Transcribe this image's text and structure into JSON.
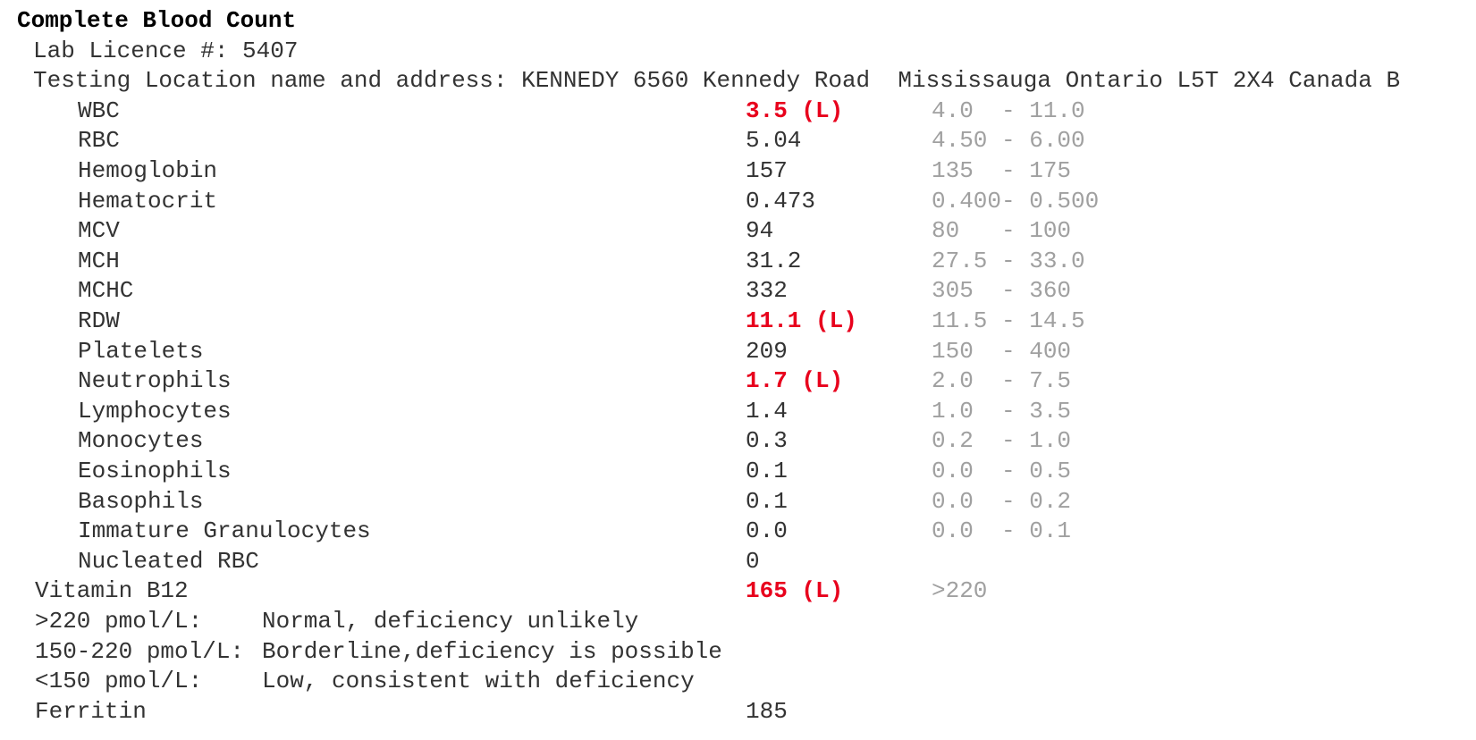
{
  "header": {
    "title": "Complete Blood Count",
    "licence": "Lab Licence #: 5407",
    "location": "Testing Location name and address: KENNEDY 6560 Kennedy Road  Mississauga Ontario L5T 2X4 Canada B"
  },
  "cbc": [
    {
      "name": "WBC",
      "value": "3.5",
      "flag": "(L)",
      "range": "4.0  - 11.0"
    },
    {
      "name": "RBC",
      "value": "5.04",
      "range": "4.50 - 6.00"
    },
    {
      "name": "Hemoglobin",
      "value": "157",
      "range": "135  - 175"
    },
    {
      "name": "Hematocrit",
      "value": "0.473",
      "range": "0.400- 0.500"
    },
    {
      "name": "MCV",
      "value": "94",
      "range": "80   - 100"
    },
    {
      "name": "MCH",
      "value": "31.2",
      "range": "27.5 - 33.0"
    },
    {
      "name": "MCHC",
      "value": "332",
      "range": "305  - 360"
    },
    {
      "name": "RDW",
      "value": "11.1",
      "flag": "(L)",
      "range": "11.5 - 14.5"
    },
    {
      "name": "Platelets",
      "value": "209",
      "range": "150  - 400"
    },
    {
      "name": "Neutrophils",
      "value": "1.7",
      "flag": "(L)",
      "range": "2.0  - 7.5"
    },
    {
      "name": "Lymphocytes",
      "value": "1.4",
      "range": "1.0  - 3.5"
    },
    {
      "name": "Monocytes",
      "value": "0.3",
      "range": "0.2  - 1.0"
    },
    {
      "name": "Eosinophils",
      "value": "0.1",
      "range": "0.0  - 0.5"
    },
    {
      "name": "Basophils",
      "value": "0.1",
      "range": "0.0  - 0.2"
    },
    {
      "name": "Immature Granulocytes",
      "value": "0.0",
      "range": "0.0  - 0.1"
    },
    {
      "name": "Nucleated RBC",
      "value": "0"
    }
  ],
  "b12": {
    "name": "Vitamin B12",
    "value": "165",
    "flag": "(L)",
    "range": ">220",
    "notes": [
      {
        "label": ">220 pmol/L:",
        "text": "Normal, deficiency unlikely"
      },
      {
        "label": "150-220 pmol/L:",
        "text": "Borderline,deficiency is possible"
      },
      {
        "label": "<150 pmol/L:",
        "text": "Low, consistent with deficiency"
      }
    ]
  },
  "ferritin": {
    "name": "Ferritin",
    "value": "185"
  }
}
